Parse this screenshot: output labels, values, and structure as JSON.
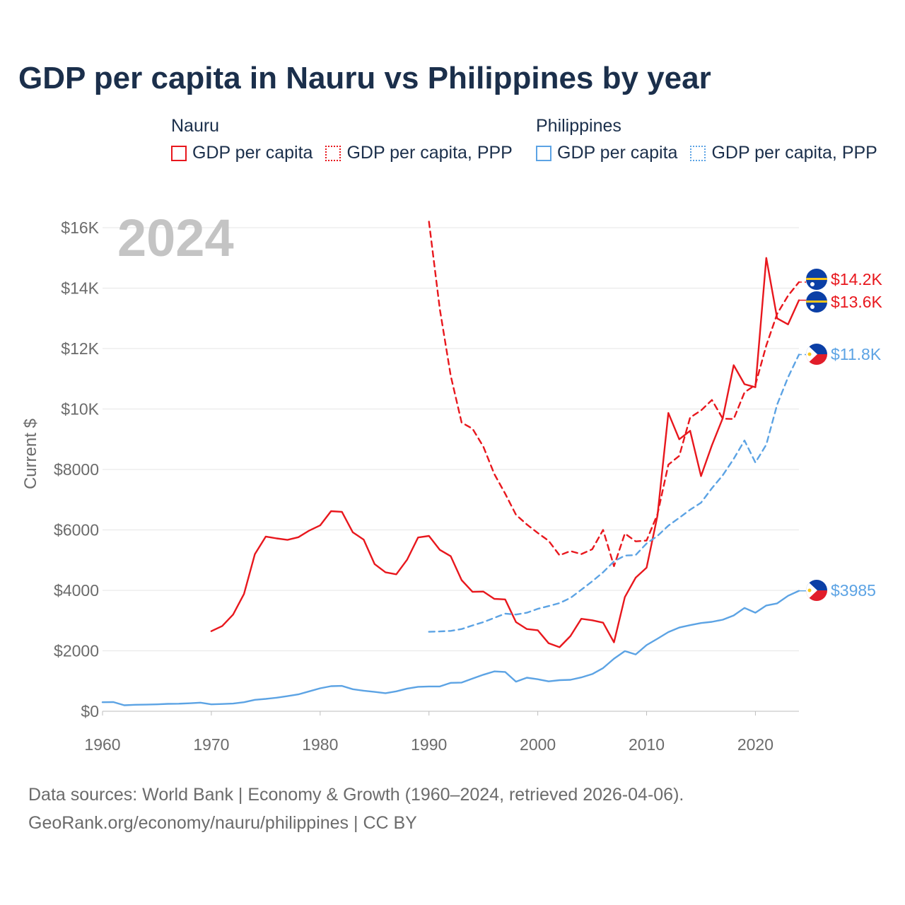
{
  "title": "GDP per capita in Nauru vs Philippines by year",
  "legend": {
    "groups": [
      {
        "name": "Nauru",
        "items": [
          "GDP per capita",
          "GDP per capita, PPP"
        ]
      },
      {
        "name": "Philippines",
        "items": [
          "GDP per capita",
          "GDP per capita, PPP"
        ]
      }
    ]
  },
  "year_label": "2024",
  "source": {
    "line1": "Data sources: World Bank | Economy & Growth (1960–2024, retrieved 2026-04-06).",
    "line2": "GeoRank.org/economy/nauru/philippines | CC BY"
  },
  "colors": {
    "nauru": "#e8171d",
    "philippines": "#5ca3e4",
    "title": "#1b2f4b",
    "axis_text": "#6b6b6b",
    "grid": "#e6e6e6",
    "year_label": "#c4c4c4"
  },
  "chart_data": {
    "type": "line",
    "title": "GDP per capita in Nauru vs Philippines by year",
    "xlabel": "",
    "ylabel": "Current $",
    "xlim": [
      1960,
      2024
    ],
    "ylim": [
      0,
      16000
    ],
    "x_ticks": [
      1960,
      1970,
      1980,
      1990,
      2000,
      2010,
      2020
    ],
    "y_ticks": [
      0,
      2000,
      4000,
      6000,
      8000,
      10000,
      12000,
      14000,
      16000
    ],
    "y_tick_labels": [
      "$0",
      "$2000",
      "$4000",
      "$6000",
      "$8000",
      "$10K",
      "$12K",
      "$14K",
      "$16K"
    ],
    "x_tick_labels": [
      "1960",
      "1970",
      "1980",
      "1990",
      "2000",
      "2010",
      "2020"
    ],
    "grid": true,
    "series": [
      {
        "name": "Nauru GDP per capita",
        "country": "Nauru",
        "style": "solid",
        "color": "#e8171d",
        "end_label": "$13.6K",
        "x_start": 1970,
        "values": [
          2650,
          2820,
          3200,
          3880,
          5200,
          5780,
          5720,
          5670,
          5760,
          5980,
          6150,
          6620,
          6600,
          5920,
          5680,
          4870,
          4600,
          4530,
          5020,
          5750,
          5800,
          5340,
          5130,
          4340,
          3950,
          3960,
          3720,
          3700,
          2950,
          2720,
          2680,
          2250,
          2120,
          2490,
          3060,
          3010,
          2930,
          2280,
          3780,
          4420,
          4750,
          6470,
          9870,
          9000,
          9280,
          7780,
          8800,
          9700,
          11450,
          10820,
          10720,
          15000,
          13000,
          12800,
          13600
        ]
      },
      {
        "name": "Nauru GDP per capita, PPP",
        "country": "Nauru",
        "style": "dashed",
        "color": "#e8171d",
        "end_label": "$14.2K",
        "x_start": 1990,
        "values": [
          16200,
          13300,
          11100,
          9550,
          9350,
          8750,
          7850,
          7200,
          6500,
          6180,
          5900,
          5640,
          5160,
          5300,
          5200,
          5360,
          6000,
          4800,
          5880,
          5620,
          5650,
          6520,
          8160,
          8450,
          9720,
          9950,
          10300,
          9680,
          9670,
          10550,
          10800,
          12100,
          13150,
          13750,
          14200
        ]
      },
      {
        "name": "Philippines GDP per capita",
        "country": "Philippines",
        "style": "solid",
        "color": "#5ca3e4",
        "end_label": "$3985",
        "x_start": 1960,
        "values": [
          300,
          305,
          200,
          215,
          220,
          230,
          245,
          250,
          265,
          285,
          230,
          240,
          255,
          300,
          380,
          410,
          450,
          500,
          560,
          660,
          760,
          830,
          840,
          730,
          680,
          640,
          600,
          660,
          750,
          810,
          820,
          820,
          940,
          950,
          1080,
          1210,
          1320,
          1300,
          980,
          1110,
          1060,
          990,
          1030,
          1040,
          1120,
          1230,
          1430,
          1740,
          1990,
          1880,
          2190,
          2400,
          2620,
          2770,
          2850,
          2920,
          2960,
          3030,
          3170,
          3420,
          3260,
          3500,
          3570,
          3820,
          3985
        ]
      },
      {
        "name": "Philippines GDP per capita, PPP",
        "country": "Philippines",
        "style": "dashed",
        "color": "#5ca3e4",
        "end_label": "$11.8K",
        "x_start": 1990,
        "values": [
          2630,
          2640,
          2660,
          2720,
          2840,
          2950,
          3090,
          3230,
          3200,
          3260,
          3390,
          3480,
          3580,
          3750,
          4020,
          4300,
          4600,
          4960,
          5150,
          5170,
          5550,
          5800,
          6140,
          6400,
          6670,
          6900,
          7380,
          7810,
          8350,
          8960,
          8230,
          8820,
          10150,
          11050,
          11800
        ]
      }
    ]
  }
}
